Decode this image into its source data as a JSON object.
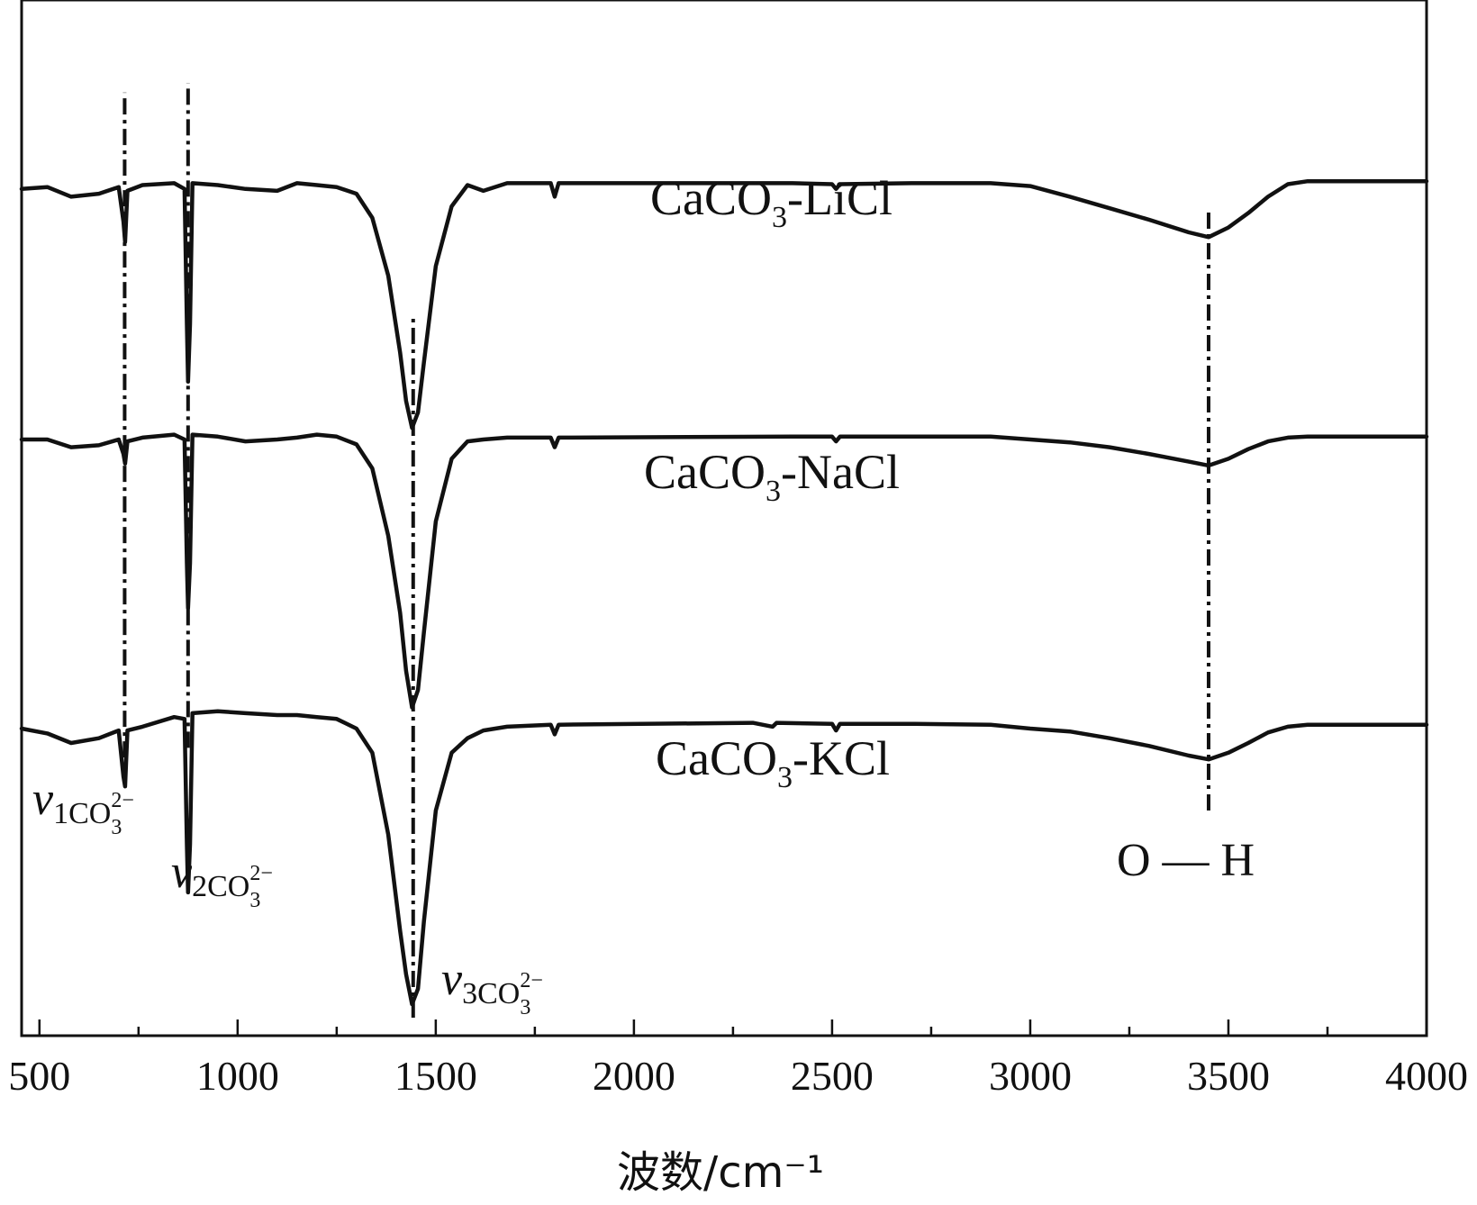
{
  "chart_data": {
    "type": "line",
    "title": "",
    "xlabel": "波数/cm⁻¹",
    "ylabel": "",
    "xlim": [
      455,
      4000
    ],
    "ylim": [
      0,
      1
    ],
    "xticks": [
      500,
      1000,
      1500,
      2000,
      2500,
      3000,
      3500,
      4000
    ],
    "xtick_labels": [
      "500",
      "1000",
      "1500",
      "2000",
      "2500",
      "3000",
      "3500",
      "4000"
    ],
    "series": [
      {
        "name": "CaCO3-LiCl",
        "label_main": "CaCO",
        "label_sub": "3",
        "label_tail": "-LiCl",
        "points": [
          [
            455,
            0.86
          ],
          [
            520,
            0.862
          ],
          [
            580,
            0.852
          ],
          [
            650,
            0.855
          ],
          [
            700,
            0.862
          ],
          [
            712,
            0.826
          ],
          [
            716,
            0.805
          ],
          [
            722,
            0.858
          ],
          [
            760,
            0.864
          ],
          [
            840,
            0.866
          ],
          [
            866,
            0.86
          ],
          [
            872,
            0.72
          ],
          [
            875,
            0.66
          ],
          [
            880,
            0.72
          ],
          [
            886,
            0.866
          ],
          [
            950,
            0.864
          ],
          [
            1020,
            0.86
          ],
          [
            1100,
            0.858
          ],
          [
            1150,
            0.866
          ],
          [
            1200,
            0.864
          ],
          [
            1250,
            0.862
          ],
          [
            1300,
            0.855
          ],
          [
            1340,
            0.83
          ],
          [
            1380,
            0.77
          ],
          [
            1410,
            0.69
          ],
          [
            1425,
            0.64
          ],
          [
            1440,
            0.612
          ],
          [
            1455,
            0.628
          ],
          [
            1470,
            0.68
          ],
          [
            1500,
            0.78
          ],
          [
            1540,
            0.842
          ],
          [
            1580,
            0.864
          ],
          [
            1620,
            0.858
          ],
          [
            1680,
            0.866
          ],
          [
            1790,
            0.866
          ],
          [
            1800,
            0.852
          ],
          [
            1810,
            0.866
          ],
          [
            2400,
            0.866
          ],
          [
            2500,
            0.865
          ],
          [
            2510,
            0.86
          ],
          [
            2520,
            0.865
          ],
          [
            2700,
            0.866
          ],
          [
            2900,
            0.866
          ],
          [
            3000,
            0.863
          ],
          [
            3100,
            0.852
          ],
          [
            3200,
            0.84
          ],
          [
            3300,
            0.828
          ],
          [
            3400,
            0.815
          ],
          [
            3450,
            0.81
          ],
          [
            3500,
            0.82
          ],
          [
            3550,
            0.835
          ],
          [
            3600,
            0.852
          ],
          [
            3650,
            0.865
          ],
          [
            3700,
            0.868
          ],
          [
            4000,
            0.868
          ]
        ]
      },
      {
        "name": "CaCO3-NaCl",
        "label_main": "CaCO",
        "label_sub": "3",
        "label_tail": "-NaCl",
        "points": [
          [
            455,
            0.6
          ],
          [
            520,
            0.6
          ],
          [
            580,
            0.592
          ],
          [
            650,
            0.594
          ],
          [
            700,
            0.6
          ],
          [
            712,
            0.585
          ],
          [
            716,
            0.575
          ],
          [
            722,
            0.598
          ],
          [
            760,
            0.602
          ],
          [
            840,
            0.605
          ],
          [
            866,
            0.6
          ],
          [
            872,
            0.472
          ],
          [
            875,
            0.425
          ],
          [
            880,
            0.472
          ],
          [
            886,
            0.605
          ],
          [
            950,
            0.603
          ],
          [
            1020,
            0.598
          ],
          [
            1100,
            0.6
          ],
          [
            1150,
            0.602
          ],
          [
            1200,
            0.605
          ],
          [
            1250,
            0.603
          ],
          [
            1300,
            0.595
          ],
          [
            1340,
            0.57
          ],
          [
            1380,
            0.5
          ],
          [
            1410,
            0.42
          ],
          [
            1425,
            0.36
          ],
          [
            1440,
            0.322
          ],
          [
            1455,
            0.34
          ],
          [
            1470,
            0.4
          ],
          [
            1500,
            0.515
          ],
          [
            1540,
            0.58
          ],
          [
            1580,
            0.598
          ],
          [
            1620,
            0.6
          ],
          [
            1680,
            0.602
          ],
          [
            1790,
            0.602
          ],
          [
            1800,
            0.592
          ],
          [
            1810,
            0.602
          ],
          [
            2400,
            0.603
          ],
          [
            2500,
            0.603
          ],
          [
            2510,
            0.598
          ],
          [
            2520,
            0.603
          ],
          [
            2700,
            0.603
          ],
          [
            2900,
            0.603
          ],
          [
            3000,
            0.6
          ],
          [
            3100,
            0.597
          ],
          [
            3200,
            0.592
          ],
          [
            3300,
            0.585
          ],
          [
            3400,
            0.577
          ],
          [
            3450,
            0.573
          ],
          [
            3500,
            0.58
          ],
          [
            3550,
            0.59
          ],
          [
            3600,
            0.598
          ],
          [
            3650,
            0.602
          ],
          [
            3700,
            0.603
          ],
          [
            4000,
            0.603
          ]
        ]
      },
      {
        "name": "CaCO3-KCl",
        "label_main": "CaCO",
        "label_sub": "3",
        "label_tail": "-KCl",
        "points": [
          [
            455,
            0.3
          ],
          [
            520,
            0.295
          ],
          [
            580,
            0.285
          ],
          [
            650,
            0.29
          ],
          [
            700,
            0.298
          ],
          [
            712,
            0.25
          ],
          [
            716,
            0.24
          ],
          [
            722,
            0.298
          ],
          [
            760,
            0.302
          ],
          [
            840,
            0.312
          ],
          [
            866,
            0.31
          ],
          [
            872,
            0.18
          ],
          [
            875,
            0.13
          ],
          [
            880,
            0.18
          ],
          [
            886,
            0.316
          ],
          [
            950,
            0.318
          ],
          [
            1020,
            0.316
          ],
          [
            1100,
            0.314
          ],
          [
            1150,
            0.314
          ],
          [
            1200,
            0.312
          ],
          [
            1250,
            0.31
          ],
          [
            1300,
            0.3
          ],
          [
            1340,
            0.275
          ],
          [
            1380,
            0.19
          ],
          [
            1410,
            0.09
          ],
          [
            1425,
            0.045
          ],
          [
            1440,
            0.014
          ],
          [
            1455,
            0.03
          ],
          [
            1470,
            0.1
          ],
          [
            1500,
            0.215
          ],
          [
            1540,
            0.275
          ],
          [
            1580,
            0.29
          ],
          [
            1620,
            0.298
          ],
          [
            1680,
            0.302
          ],
          [
            1790,
            0.304
          ],
          [
            1800,
            0.294
          ],
          [
            1810,
            0.304
          ],
          [
            2300,
            0.306
          ],
          [
            2350,
            0.302
          ],
          [
            2360,
            0.306
          ],
          [
            2500,
            0.305
          ],
          [
            2510,
            0.298
          ],
          [
            2520,
            0.305
          ],
          [
            2700,
            0.305
          ],
          [
            2900,
            0.304
          ],
          [
            3000,
            0.3
          ],
          [
            3100,
            0.297
          ],
          [
            3200,
            0.29
          ],
          [
            3300,
            0.282
          ],
          [
            3400,
            0.272
          ],
          [
            3450,
            0.268
          ],
          [
            3500,
            0.275
          ],
          [
            3550,
            0.285
          ],
          [
            3600,
            0.296
          ],
          [
            3650,
            0.302
          ],
          [
            3700,
            0.304
          ],
          [
            4000,
            0.304
          ]
        ]
      }
    ],
    "reference_lines": [
      {
        "x": 715,
        "y_from": 0.27,
        "y_to": 0.96
      },
      {
        "x": 875,
        "y_from": 0.28,
        "y_to": 0.97
      },
      {
        "x": 1443,
        "y_from": 0.0,
        "y_to": 0.73
      },
      {
        "x": 3450,
        "y_from": 0.215,
        "y_to": 0.84
      }
    ],
    "annotations": [
      {
        "id": "v1",
        "main": "v",
        "num": "1",
        "species": "CO",
        "species_sub": "3",
        "species_sup": "2−"
      },
      {
        "id": "v2",
        "main": "v",
        "num": "2",
        "species": "CO",
        "species_sub": "3",
        "species_sup": "2−"
      },
      {
        "id": "v3",
        "main": "v",
        "num": "3",
        "species": "CO",
        "species_sub": "3",
        "species_sup": "2−"
      },
      {
        "id": "oh",
        "text": "O — H"
      }
    ]
  }
}
